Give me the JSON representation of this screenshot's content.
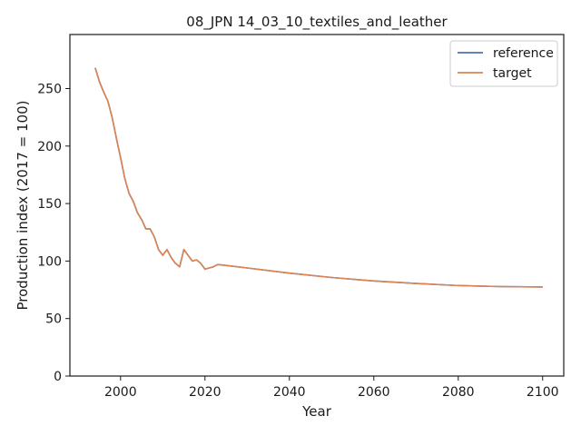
{
  "chart_data": {
    "type": "line",
    "title": "08_JPN 14_03_10_textiles_and_leather",
    "xlabel": "Year",
    "ylabel": "Production index (2017 = 100)",
    "xlim": [
      1988,
      2105
    ],
    "ylim": [
      0,
      297
    ],
    "xticks": [
      2000,
      2020,
      2040,
      2060,
      2080,
      2100
    ],
    "yticks": [
      0,
      50,
      100,
      150,
      200,
      250
    ],
    "grid": false,
    "legend_position": "top-right",
    "colors": {
      "reference": "#4c72b0",
      "target": "#dd8452",
      "axis": "#1a1a1a"
    },
    "series": [
      {
        "name": "reference",
        "x": [
          1994,
          1995,
          1996,
          1997,
          1998,
          1999,
          2000,
          2001,
          2002,
          2003,
          2004,
          2005,
          2006,
          2007,
          2008,
          2009,
          2010,
          2011,
          2012,
          2013,
          2014,
          2015,
          2016,
          2017,
          2018,
          2019,
          2020,
          2021,
          2022,
          2023,
          2030,
          2040,
          2050,
          2060,
          2070,
          2080,
          2090,
          2100
        ],
        "y": [
          268,
          256,
          247,
          239,
          225,
          207,
          190,
          172,
          159,
          152,
          142,
          136,
          128,
          128,
          121,
          110,
          105,
          110,
          103,
          98,
          95,
          110,
          105,
          100,
          101,
          98,
          93,
          94,
          95,
          97,
          94,
          89.5,
          85.7,
          82.7,
          80.5,
          78.7,
          77.8,
          77.5
        ]
      },
      {
        "name": "target",
        "x": [
          1994,
          1995,
          1996,
          1997,
          1998,
          1999,
          2000,
          2001,
          2002,
          2003,
          2004,
          2005,
          2006,
          2007,
          2008,
          2009,
          2010,
          2011,
          2012,
          2013,
          2014,
          2015,
          2016,
          2017,
          2018,
          2019,
          2020,
          2021,
          2022,
          2023,
          2030,
          2040,
          2050,
          2060,
          2070,
          2080,
          2090,
          2100
        ],
        "y": [
          268,
          256,
          247,
          239,
          225,
          207,
          190,
          172,
          159,
          152,
          142,
          136,
          128,
          128,
          121,
          110,
          105,
          110,
          103,
          98,
          95,
          110,
          105,
          100,
          101,
          98,
          93,
          94,
          95,
          97,
          94,
          89.5,
          85.7,
          82.7,
          80.5,
          78.7,
          77.8,
          77.5
        ]
      }
    ]
  }
}
